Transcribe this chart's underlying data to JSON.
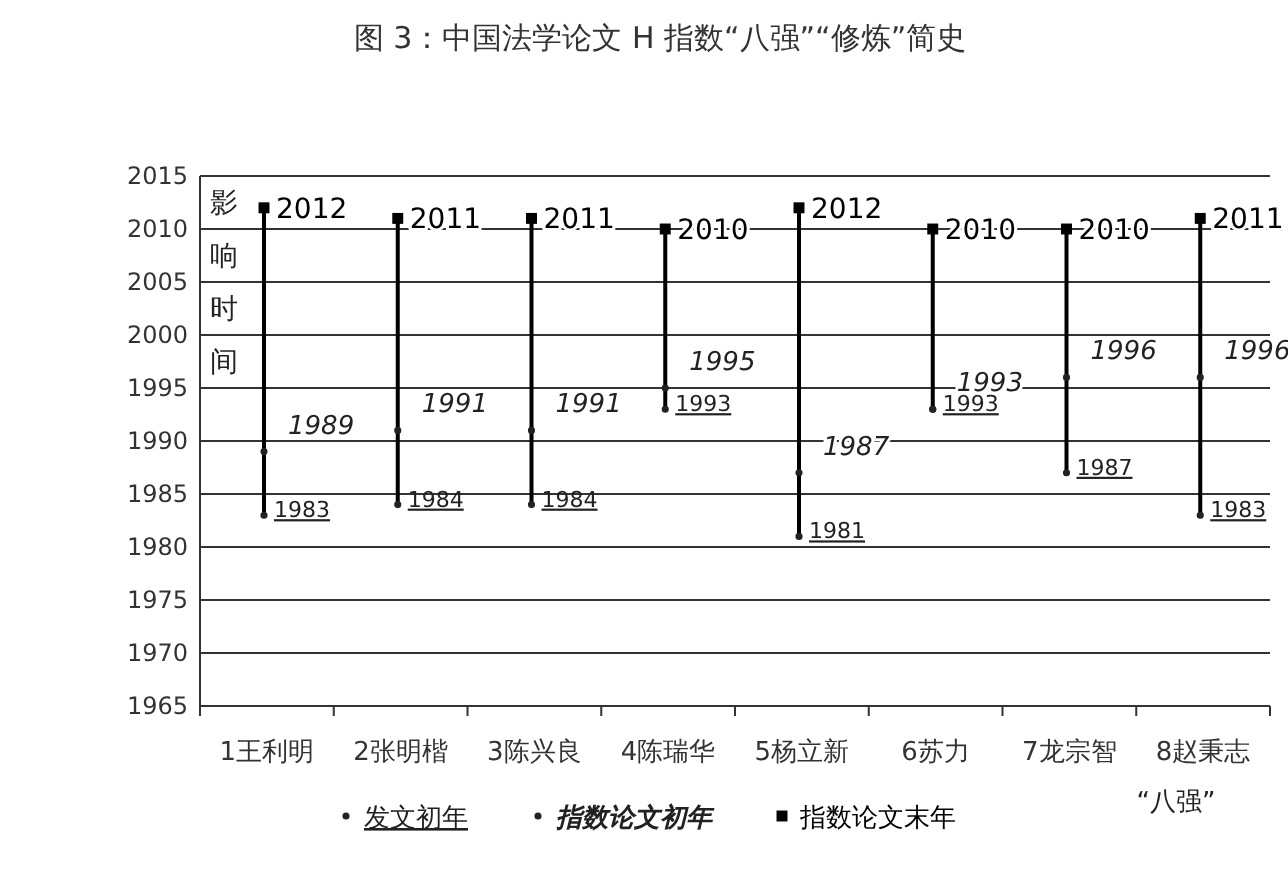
{
  "chart_data": {
    "type": "scatter",
    "title": "图 3：中国法学论文 H 指数“八强”“修炼”简史",
    "ylabel": "影响时间",
    "categories": [
      "1王利明",
      "2张明楷",
      "3陈兴良",
      "4陈瑞华",
      "5杨立新",
      "6苏力",
      "7龙宗智",
      "8赵秉志"
    ],
    "series": [
      {
        "type": "bar",
        "color": "#000000",
        "base": [
          1983,
          1984,
          1984,
          1993,
          1981,
          1993,
          1987,
          1983
        ],
        "values": [
          29,
          27,
          27,
          17,
          31,
          17,
          23,
          28
        ]
      },
      {
        "name": "发文初年",
        "marker": "circle",
        "color": "#222222",
        "values": [
          1983,
          1984,
          1984,
          1993,
          1981,
          1993,
          1987,
          1983
        ],
        "value_labels": [
          "1983",
          "1984",
          "1984",
          "1993",
          "1981",
          "1993",
          "1987",
          "1983"
        ]
      },
      {
        "name": "指数论文初年",
        "type": "scatter",
        "marker": "circle",
        "color": "#222222",
        "values": [
          1989,
          1991,
          1991,
          1995,
          1987,
          1993,
          1996,
          1996
        ],
        "value_labels": [
          "1989",
          "1991",
          "1991",
          "1995",
          "1987",
          "1993",
          "1996",
          "1996"
        ]
      },
      {
        "name": "指数论文末年",
        "type": "scatter",
        "marker": "square",
        "color": "#000000",
        "values": [
          2012,
          2011,
          2011,
          2010,
          2012,
          2010,
          2010,
          2011
        ],
        "value_labels": [
          "2012",
          "2011",
          "2011",
          "2010",
          "2012",
          "2010",
          "2010",
          "2011"
        ]
      }
    ],
    "ylim": [
      1965,
      2015
    ],
    "yticks": [
      1965,
      1970,
      1975,
      1980,
      1985,
      1990,
      1995,
      2000,
      2005,
      2010,
      2015
    ],
    "grid": "y",
    "legend": "bottom",
    "annotations": [
      "“八强”"
    ]
  }
}
